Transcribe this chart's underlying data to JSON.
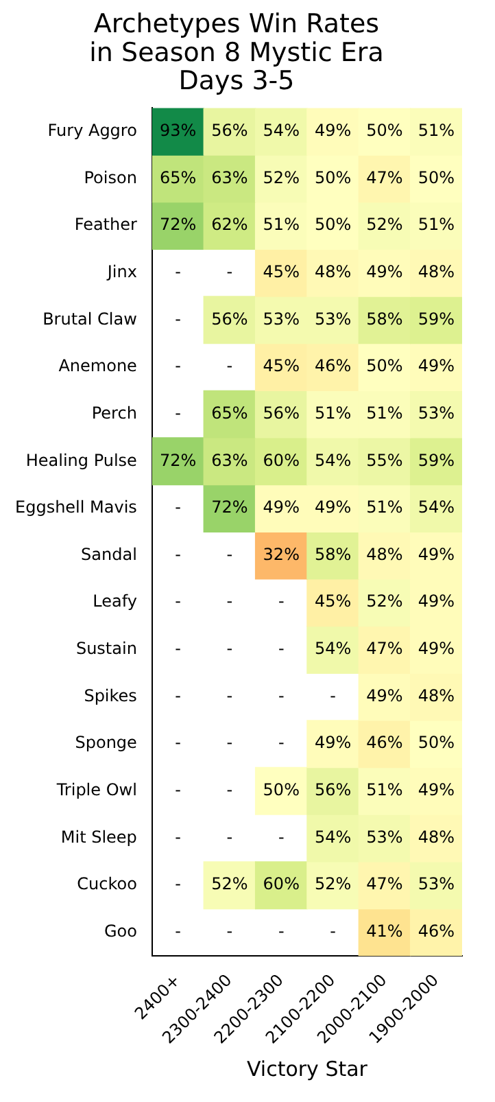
{
  "chart_data": {
    "type": "heatmap",
    "title": "Archetypes Win Rates\nin Season 8 Mystic Era\nDays 3-5",
    "xlabel": "Victory Star",
    "grid": false,
    "categories": [
      "2400+",
      "2300-2400",
      "2200-2300",
      "2100-2200",
      "2000-2100",
      "1900-2000"
    ],
    "y_categories": [
      "Fury Aggro",
      "Poison",
      "Feather",
      "Jinx",
      "Brutal Claw",
      "Anemone",
      "Perch",
      "Healing Pulse",
      "Eggshell Mavis",
      "Sandal",
      "Leafy",
      "Sustain",
      "Spikes",
      "Sponge",
      "Triple Owl",
      "Mit Sleep",
      "Cuckoo",
      "Goo"
    ],
    "cells": [
      [
        93,
        56,
        54,
        49,
        50,
        51
      ],
      [
        65,
        63,
        52,
        50,
        47,
        50
      ],
      [
        72,
        62,
        51,
        50,
        52,
        51
      ],
      [
        null,
        null,
        45,
        48,
        49,
        48
      ],
      [
        null,
        56,
        53,
        53,
        58,
        59
      ],
      [
        null,
        null,
        45,
        46,
        50,
        49
      ],
      [
        null,
        65,
        56,
        51,
        51,
        53
      ],
      [
        72,
        63,
        60,
        54,
        55,
        59
      ],
      [
        null,
        72,
        49,
        49,
        51,
        54
      ],
      [
        null,
        null,
        32,
        58,
        48,
        49
      ],
      [
        null,
        null,
        null,
        45,
        52,
        49
      ],
      [
        null,
        null,
        null,
        54,
        47,
        49
      ],
      [
        null,
        null,
        null,
        null,
        49,
        48
      ],
      [
        null,
        null,
        null,
        49,
        46,
        50
      ],
      [
        null,
        null,
        50,
        56,
        51,
        49
      ],
      [
        null,
        null,
        null,
        54,
        53,
        48
      ],
      [
        null,
        52,
        60,
        52,
        47,
        53
      ],
      [
        null,
        null,
        null,
        null,
        41,
        46
      ]
    ],
    "cell_labels": [
      [
        "93%",
        "56%",
        "54%",
        "49%",
        "50%",
        "51%"
      ],
      [
        "65%",
        "63%",
        "52%",
        "50%",
        "47%",
        "50%"
      ],
      [
        "72%",
        "62%",
        "51%",
        "50%",
        "52%",
        "51%"
      ],
      [
        "-",
        "-",
        "45%",
        "48%",
        "49%",
        "48%"
      ],
      [
        "-",
        "56%",
        "53%",
        "53%",
        "58%",
        "59%"
      ],
      [
        "-",
        "-",
        "45%",
        "46%",
        "50%",
        "49%"
      ],
      [
        "-",
        "65%",
        "56%",
        "51%",
        "51%",
        "53%"
      ],
      [
        "72%",
        "63%",
        "60%",
        "54%",
        "55%",
        "59%"
      ],
      [
        "-",
        "72%",
        "49%",
        "49%",
        "51%",
        "54%"
      ],
      [
        "-",
        "-",
        "32%",
        "58%",
        "48%",
        "49%"
      ],
      [
        "-",
        "-",
        "-",
        "45%",
        "52%",
        "49%"
      ],
      [
        "-",
        "-",
        "-",
        "54%",
        "47%",
        "49%"
      ],
      [
        "-",
        "-",
        "-",
        "-",
        "49%",
        "48%"
      ],
      [
        "-",
        "-",
        "-",
        "49%",
        "46%",
        "50%"
      ],
      [
        "-",
        "-",
        "50%",
        "56%",
        "51%",
        "49%"
      ],
      [
        "-",
        "-",
        "-",
        "54%",
        "53%",
        "48%"
      ],
      [
        "-",
        "52%",
        "60%",
        "52%",
        "47%",
        "53%"
      ],
      [
        "-",
        "-",
        "-",
        "-",
        "41%",
        "46%"
      ]
    ]
  }
}
